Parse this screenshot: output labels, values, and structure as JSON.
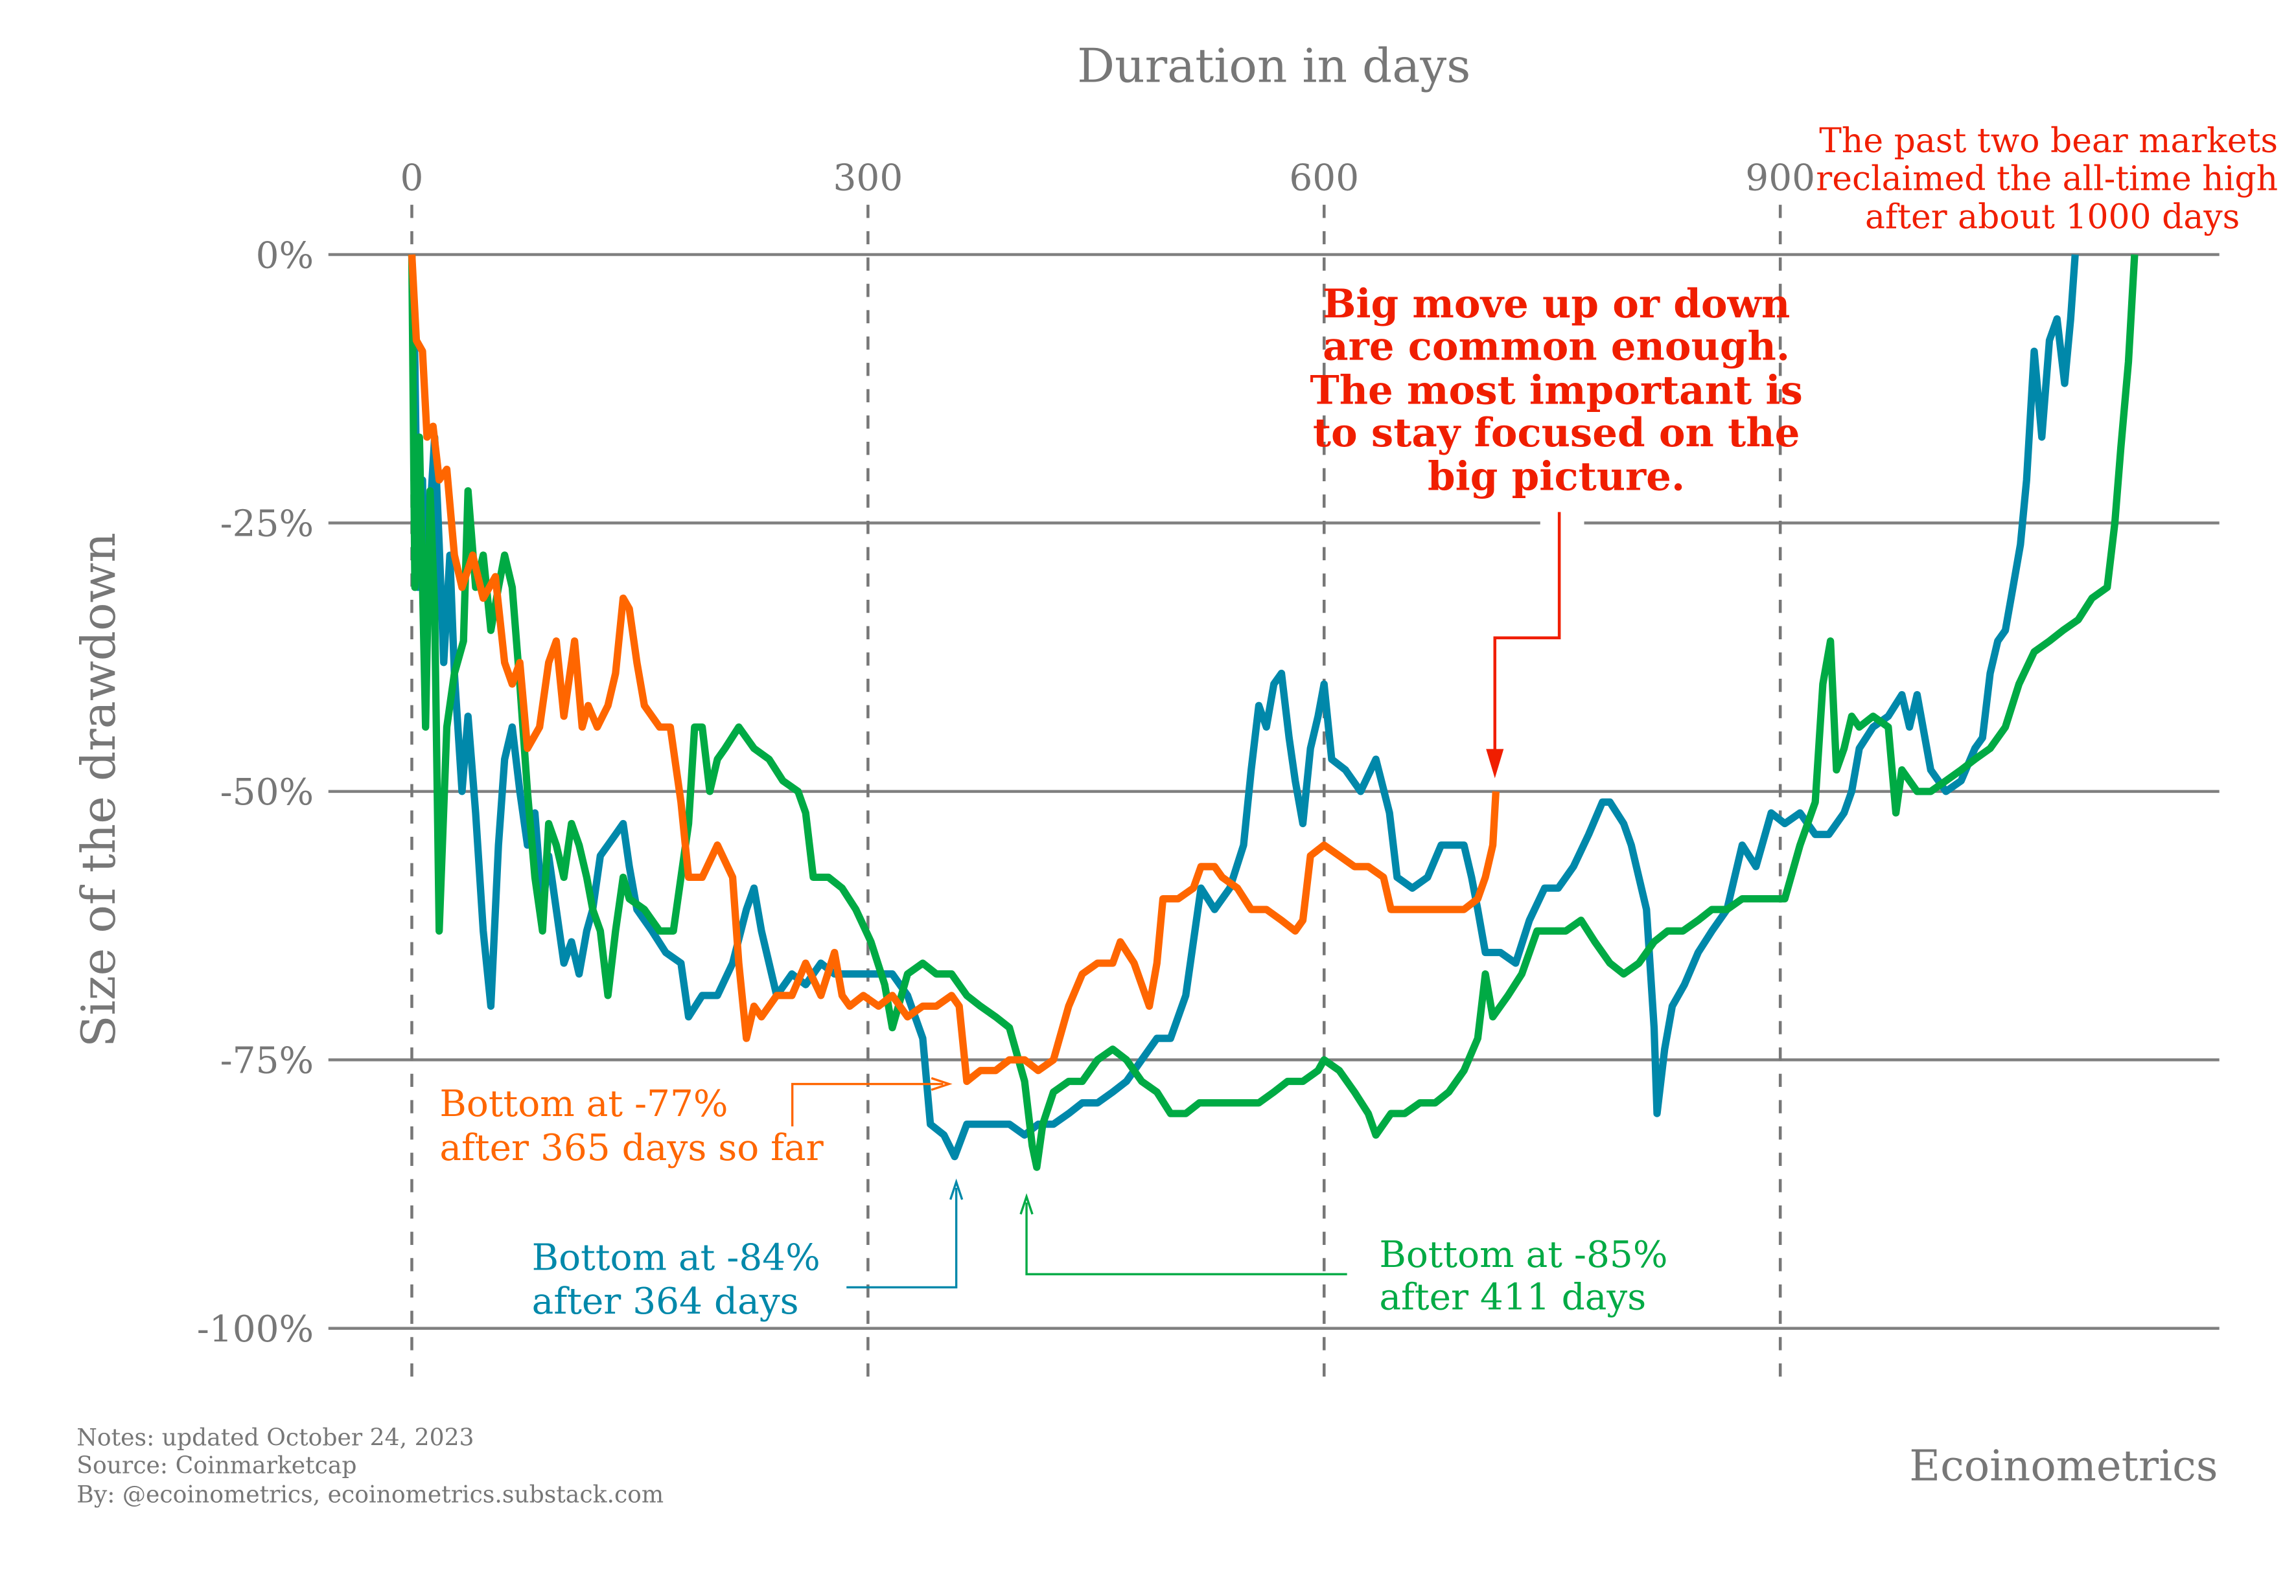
{
  "chart_data": {
    "type": "line",
    "title": "",
    "xlabel": "Duration in days",
    "ylabel": "Size of the drawdown",
    "xlim": [
      0,
      1190
    ],
    "ylim": [
      -100,
      0
    ],
    "x_ticks": [
      0,
      300,
      600,
      900
    ],
    "x_tick_labels": [
      "0",
      "300",
      "600",
      "900"
    ],
    "y_ticks": [
      0,
      -25,
      -50,
      -75,
      -100
    ],
    "y_tick_labels": [
      "0%",
      "-25%",
      "-50%",
      "-75%",
      "-100%"
    ],
    "x_axis_position": "top",
    "grid": "horizontal solid, vertical dashed",
    "series": [
      {
        "color": "#ff6600",
        "x": [
          0,
          3,
          7,
          10,
          14,
          18,
          23,
          28,
          33,
          40,
          47,
          55,
          61,
          66,
          71,
          76,
          84,
          90,
          95,
          100,
          107,
          112,
          116,
          122,
          129,
          134,
          139,
          143,
          148,
          153,
          163,
          170,
          177,
          182,
          191,
          201,
          211,
          215,
          220,
          225,
          230,
          240,
          250,
          259,
          269,
          278,
          283,
          288,
          297,
          307,
          316,
          326,
          336,
          345,
          355,
          360,
          365,
          374,
          384,
          393,
          403,
          412,
          422,
          432,
          441,
          451,
          461,
          466,
          475,
          485,
          490,
          494,
          504,
          514,
          519,
          528,
          533,
          543,
          552,
          562,
          572,
          581,
          586,
          591,
          600,
          610,
          620,
          629,
          639,
          644,
          653,
          663,
          673,
          682,
          692,
          701,
          706,
          711,
          713
        ],
        "y": [
          0,
          -8,
          -9,
          -17,
          -16,
          -21,
          -20,
          -28,
          -31,
          -28,
          -32,
          -30,
          -38,
          -40,
          -38,
          -46,
          -44,
          -38,
          -36,
          -43,
          -36,
          -44,
          -42,
          -44,
          -42,
          -39,
          -32,
          -33,
          -38,
          -42,
          -44,
          -44,
          -51,
          -58,
          -58,
          -55,
          -58,
          -66,
          -73,
          -70,
          -71,
          -69,
          -69,
          -66,
          -69,
          -65,
          -69,
          -70,
          -69,
          -70,
          -69,
          -71,
          -70,
          -70,
          -69,
          -70,
          -77,
          -76,
          -76,
          -75,
          -75,
          -76,
          -75,
          -70,
          -67,
          -66,
          -66,
          -64,
          -66,
          -70,
          -66,
          -60,
          -60,
          -59,
          -57,
          -57,
          -58,
          -59,
          -61,
          -61,
          -62,
          -63,
          -62,
          -56,
          -55,
          -56,
          -57,
          -57,
          -58,
          -61,
          -61,
          -61,
          -61,
          -61,
          -61,
          -60,
          -58,
          -55,
          -50
        ]
      },
      {
        "color": "#0088aa",
        "x": [
          0,
          2,
          4,
          7,
          9,
          12,
          15,
          18,
          21,
          25,
          28,
          33,
          37,
          42,
          47,
          52,
          57,
          61,
          66,
          71,
          76,
          81,
          86,
          90,
          95,
          100,
          105,
          110,
          115,
          119,
          124,
          129,
          134,
          139,
          143,
          148,
          158,
          167,
          177,
          182,
          191,
          201,
          211,
          220,
          225,
          230,
          240,
          250,
          259,
          269,
          278,
          288,
          297,
          307,
          316,
          326,
          336,
          341,
          350,
          357,
          365,
          374,
          384,
          393,
          403,
          412,
          422,
          432,
          441,
          451,
          461,
          470,
          480,
          490,
          499,
          509,
          514,
          519,
          528,
          538,
          547,
          552,
          557,
          562,
          567,
          572,
          577,
          581,
          586,
          591,
          596,
          600,
          605,
          614,
          624,
          634,
          643,
          648,
          658,
          668,
          677,
          682,
          692,
          697,
          701,
          706,
          716,
          726,
          735,
          745,
          754,
          764,
          774,
          783,
          788,
          797,
          802,
          807,
          812,
          817,
          819,
          824,
          829,
          837,
          846,
          855,
          865,
          875,
          884,
          894,
          903,
          913,
          923,
          932,
          942,
          947,
          952,
          961,
          971,
          980,
          985,
          990,
          999,
          1009,
          1019,
          1028,
          1033,
          1038,
          1043,
          1048,
          1053,
          1058,
          1062,
          1067,
          1072,
          1077,
          1082,
          1087,
          1091,
          1094
        ],
        "y": [
          0,
          -10,
          -31,
          -21,
          -40,
          -24,
          -17,
          -27,
          -38,
          -28,
          -39,
          -50,
          -43,
          -52,
          -63,
          -70,
          -55,
          -47,
          -44,
          -50,
          -55,
          -52,
          -61,
          -56,
          -61,
          -66,
          -64,
          -67,
          -63,
          -61,
          -56,
          -55,
          -54,
          -53,
          -57,
          -61,
          -63,
          -65,
          -66,
          -71,
          -69,
          -69,
          -66,
          -61,
          -59,
          -63,
          -69,
          -67,
          -68,
          -66,
          -67,
          -67,
          -67,
          -67,
          -67,
          -69,
          -73,
          -81,
          -82,
          -84,
          -81,
          -81,
          -81,
          -81,
          -82,
          -81,
          -81,
          -80,
          -79,
          -79,
          -78,
          -77,
          -75,
          -73,
          -73,
          -69,
          -64,
          -59,
          -61,
          -59,
          -55,
          -48,
          -42,
          -44,
          -40,
          -39,
          -45,
          -49,
          -53,
          -46,
          -43,
          -40,
          -47,
          -48,
          -50,
          -47,
          -52,
          -58,
          -59,
          -58,
          -55,
          -55,
          -55,
          -58,
          -61,
          -65,
          -65,
          -66,
          -62,
          -59,
          -59,
          -57,
          -54,
          -51,
          -51,
          -53,
          -55,
          -58,
          -61,
          -72,
          -80,
          -74,
          -70,
          -68,
          -65,
          -63,
          -61,
          -55,
          -57,
          -52,
          -53,
          -52,
          -54,
          -54,
          -52,
          -50,
          -46,
          -44,
          -43,
          -41,
          -44,
          -41,
          -48,
          -50,
          -49,
          -46,
          -45,
          -39,
          -36,
          -35,
          -31,
          -27,
          -21,
          -9,
          -17,
          -8,
          -6,
          -12,
          -6,
          0
        ]
      },
      {
        "color": "#00aa44",
        "x": [
          0,
          2,
          5,
          9,
          12,
          15,
          18,
          23,
          28,
          34,
          37,
          42,
          47,
          52,
          57,
          61,
          66,
          71,
          76,
          81,
          86,
          90,
          95,
          100,
          105,
          110,
          115,
          119,
          124,
          129,
          134,
          139,
          143,
          153,
          163,
          172,
          182,
          186,
          191,
          196,
          201,
          206,
          215,
          225,
          235,
          244,
          254,
          259,
          264,
          274,
          283,
          292,
          302,
          311,
          316,
          326,
          336,
          345,
          355,
          365,
          374,
          384,
          393,
          403,
          408,
          411,
          415,
          422,
          432,
          441,
          451,
          461,
          470,
          480,
          490,
          499,
          509,
          518,
          528,
          538,
          547,
          557,
          567,
          576,
          586,
          596,
          600,
          610,
          620,
          629,
          634,
          644,
          653,
          663,
          673,
          682,
          692,
          701,
          706,
          711,
          721,
          730,
          740,
          750,
          759,
          769,
          778,
          788,
          797,
          807,
          817,
          826,
          836,
          846,
          855,
          865,
          875,
          884,
          894,
          903,
          913,
          923,
          928,
          933,
          937,
          942,
          947,
          952,
          961,
          971,
          976,
          980,
          990,
          999,
          1009,
          1019,
          1028,
          1038,
          1048,
          1057,
          1067,
          1077,
          1086,
          1096,
          1105,
          1115,
          1120,
          1124,
          1129,
          1133
        ],
        "y": [
          0,
          -31,
          -17,
          -44,
          -22,
          -33,
          -63,
          -44,
          -39,
          -36,
          -22,
          -31,
          -28,
          -35,
          -31,
          -28,
          -31,
          -40,
          -50,
          -58,
          -63,
          -53,
          -55,
          -58,
          -53,
          -55,
          -58,
          -61,
          -63,
          -69,
          -63,
          -58,
          -60,
          -61,
          -63,
          -63,
          -53,
          -44,
          -44,
          -50,
          -47,
          -46,
          -44,
          -46,
          -47,
          -49,
          -50,
          -52,
          -58,
          -58,
          -59,
          -61,
          -64,
          -68,
          -72,
          -67,
          -66,
          -67,
          -67,
          -69,
          -70,
          -71,
          -72,
          -77,
          -83,
          -85,
          -81,
          -78,
          -77,
          -77,
          -75,
          -74,
          -75,
          -77,
          -78,
          -80,
          -80,
          -79,
          -79,
          -79,
          -79,
          -79,
          -78,
          -77,
          -77,
          -76,
          -75,
          -76,
          -78,
          -80,
          -82,
          -80,
          -80,
          -79,
          -79,
          -78,
          -76,
          -73,
          -67,
          -71,
          -69,
          -67,
          -63,
          -63,
          -63,
          -62,
          -64,
          -66,
          -67,
          -66,
          -64,
          -63,
          -63,
          -62,
          -61,
          -61,
          -60,
          -60,
          -60,
          -60,
          -55,
          -51,
          -40,
          -36,
          -48,
          -46,
          -43,
          -44,
          -43,
          -44,
          -52,
          -48,
          -50,
          -50,
          -49,
          -48,
          -47,
          -46,
          -44,
          -40,
          -37,
          -36,
          -35,
          -34,
          -32,
          -31,
          -25,
          -18,
          -10,
          0
        ]
      }
    ]
  },
  "annotations": {
    "orange": {
      "line1": "Bottom at -77%",
      "line2": "after 365 days so far",
      "color": "#ff6600"
    },
    "blue": {
      "line1": "Bottom at -84%",
      "line2": "after 364 days",
      "color": "#0088aa"
    },
    "green": {
      "line1": "Bottom at -85%",
      "line2": "after 411 days",
      "color": "#00aa44"
    },
    "callout": {
      "lines": [
        "Big move up or down",
        "are common enough.",
        "The most important is",
        "to stay focused on the",
        "big picture."
      ],
      "color": "#f01e00"
    },
    "top_right": {
      "lines": [
        "The past two bear markets",
        "reclaimed the all-time high",
        "after about 1000 days"
      ],
      "color": "#f01e00"
    }
  },
  "footer": {
    "notes": "Notes: updated October 24, 2023",
    "source": "Source: Coinmarketcap",
    "by": "By: @ecoinometrics, ecoinometrics.substack.com",
    "brand": "Ecoinometrics"
  }
}
